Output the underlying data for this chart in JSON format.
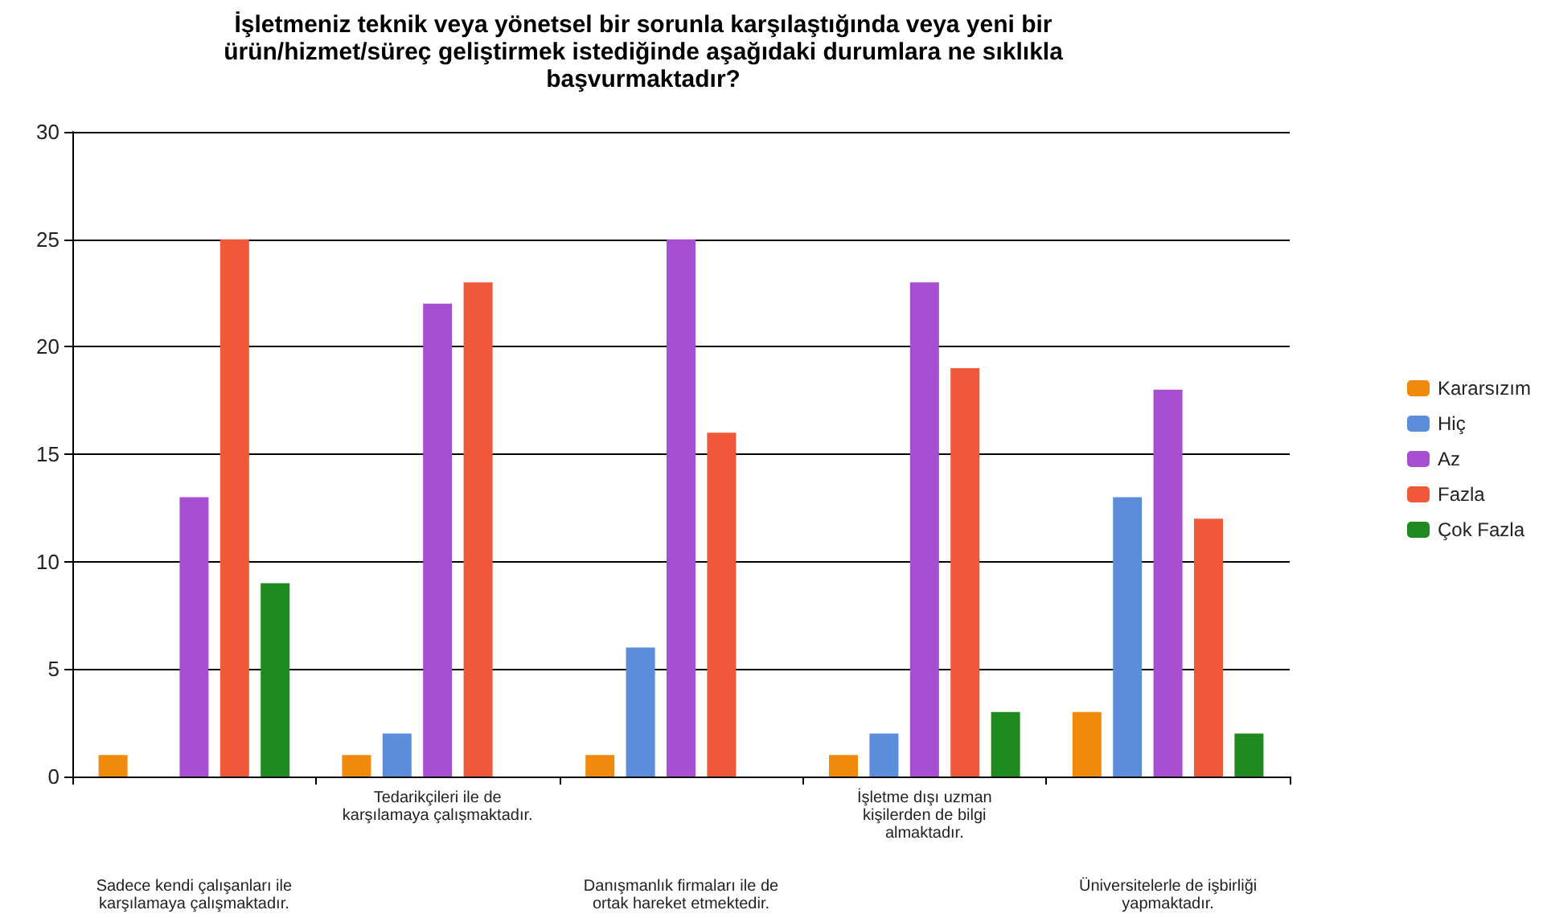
{
  "chart_data": {
    "type": "bar",
    "title": "İşletmeniz teknik veya yönetsel bir sorunla karşılaştığında veya yeni bir ürün/hizmet/süreç geliştirmek istediğinde aşağıdaki durumlara ne sıklıkla başvurmaktadır?",
    "categories": [
      "Sadece kendi çalışanları ile karşılamaya çalışmaktadır.",
      "Tedarikçileri ile de karşılamaya çalışmaktadır.",
      "Danışmanlık firmaları ile de ortak hareket etmektedir.",
      "İşletme dışı uzman kişilerden de bilgi almaktadır.",
      "Üniversitelerle de işbirliği yapmaktadır."
    ],
    "series": [
      {
        "name": "Kararsızım",
        "color": "#f08a0c",
        "values": [
          1,
          1,
          1,
          1,
          3
        ]
      },
      {
        "name": "Hiç",
        "color": "#5b8ddb",
        "values": [
          0,
          2,
          6,
          2,
          13
        ]
      },
      {
        "name": "Az",
        "color": "#a84ed0",
        "values": [
          13,
          22,
          25,
          23,
          18
        ]
      },
      {
        "name": "Fazla",
        "color": "#f0583a",
        "values": [
          25,
          23,
          16,
          19,
          12
        ]
      },
      {
        "name": "Çok Fazla",
        "color": "#1f8a1f",
        "values": [
          9,
          0,
          0,
          3,
          2
        ]
      }
    ],
    "ylim": [
      0,
      30
    ],
    "yticks": [
      0,
      5,
      10,
      15,
      20,
      25,
      30
    ],
    "grid": "y",
    "legend": "right"
  }
}
